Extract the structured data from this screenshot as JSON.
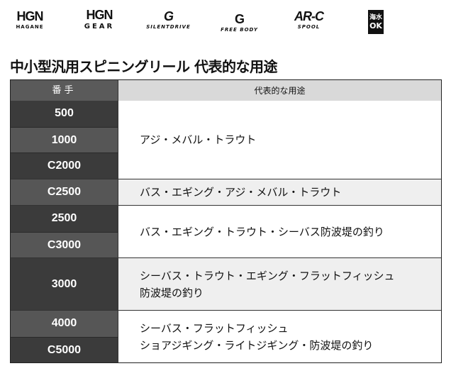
{
  "logos": [
    {
      "mark": "HGN",
      "sub": "HAGANE"
    },
    {
      "mark": "HGN",
      "sub": "GEAR"
    },
    {
      "mark": "G",
      "sub": "SILENTDRIVE"
    },
    {
      "mark": "G",
      "sub": "FREE BODY"
    },
    {
      "mark": "AR-C",
      "sub": "SPOOL"
    },
    {
      "mark": "海水",
      "sub": "OK"
    }
  ],
  "title": "中小型汎用スピニングリール 代表的な用途",
  "table": {
    "headers": [
      "番手",
      "代表的な用途"
    ],
    "groups": [
      {
        "sizes": [
          "500",
          "1000",
          "C2000"
        ],
        "use": [
          "アジ・メバル・トラウト"
        ]
      },
      {
        "sizes": [
          "C2500"
        ],
        "use": [
          "バス・エギング・アジ・メバル・トラウト"
        ]
      },
      {
        "sizes": [
          "2500",
          "C3000"
        ],
        "use": [
          "バス・エギング・トラウト・シーバス防波堤の釣り"
        ]
      },
      {
        "sizes": [
          "3000"
        ],
        "use": [
          "シーバス・トラウト・エギング・フラットフィッシュ",
          "防波堤の釣り"
        ]
      },
      {
        "sizes": [
          "4000",
          "C5000"
        ],
        "use": [
          "シーバス・フラットフィッシュ",
          "ショアジギング・ライトジギング・防波堤の釣り"
        ]
      }
    ]
  },
  "colors": {
    "dark": "#3b3b3b",
    "mid": "#565656",
    "header": "#5a5a5a",
    "header_right": "#d9d9d9",
    "alt": "#efefef"
  }
}
